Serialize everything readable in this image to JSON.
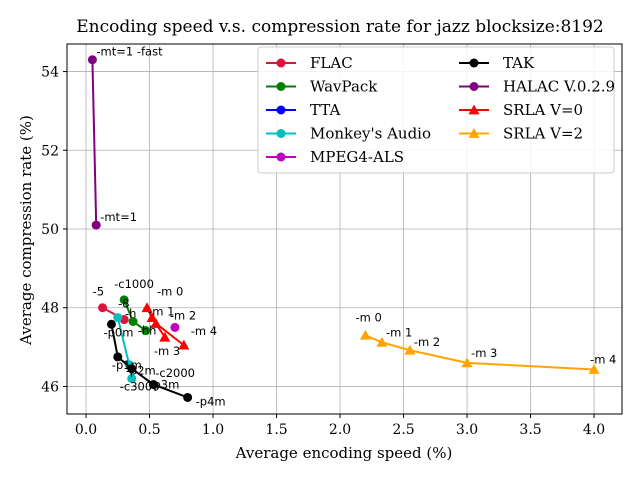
{
  "chart_data": {
    "type": "line",
    "title": "Encoding speed v.s. compression rate for jazz blocksize:8192",
    "xlabel": "Average encoding speed (%)",
    "ylabel": "Average compression rate (%)",
    "xlim": [
      -0.15,
      4.22
    ],
    "ylim": [
      45.3,
      54.7
    ],
    "xticks": [
      0.0,
      0.5,
      1.0,
      1.5,
      2.0,
      2.5,
      3.0,
      3.5,
      4.0
    ],
    "xtick_labels": [
      "0.0",
      "0.5",
      "1.0",
      "1.5",
      "2.0",
      "2.5",
      "3.0",
      "3.5",
      "4.0"
    ],
    "yticks": [
      46,
      48,
      50,
      52,
      54
    ],
    "ytick_labels": [
      "46",
      "48",
      "50",
      "52",
      "54"
    ],
    "grid": true,
    "legend_position": "top-right",
    "series": [
      {
        "name": "FLAC",
        "color": "#dc143c",
        "marker": "circle",
        "points": [
          {
            "x": 0.13,
            "y": 48.0,
            "label": "-5"
          },
          {
            "x": 0.3,
            "y": 47.7,
            "label": "-8"
          }
        ]
      },
      {
        "name": "WavPack",
        "color": "#008000",
        "marker": "circle",
        "points": [
          {
            "x": 0.3,
            "y": 48.2,
            "label": "-c1000"
          },
          {
            "x": 0.37,
            "y": 47.65,
            "label": "-h"
          },
          {
            "x": 0.47,
            "y": 47.42,
            "label": "-hh"
          }
        ]
      },
      {
        "name": "TTA",
        "color": "#0000ff",
        "marker": "circle",
        "points": []
      },
      {
        "name": "Monkey's Audio",
        "color": "#00bfbf",
        "marker": "circle",
        "points": [
          {
            "x": 0.25,
            "y": 47.75,
            "label": ""
          },
          {
            "x": 0.34,
            "y": 46.55,
            "label": "-c2000"
          },
          {
            "x": 0.36,
            "y": 46.2,
            "label": "-c3000"
          }
        ]
      },
      {
        "name": "MPEG4-ALS",
        "color": "#bf00bf",
        "marker": "circle",
        "points": [
          {
            "x": 0.7,
            "y": 47.5,
            "label": ""
          }
        ]
      },
      {
        "name": "TAK",
        "color": "#000000",
        "marker": "circle",
        "points": [
          {
            "x": 0.2,
            "y": 47.58,
            "label": "-p0m"
          },
          {
            "x": 0.25,
            "y": 46.75,
            "label": "-p1m"
          },
          {
            "x": 0.36,
            "y": 46.45,
            "label": "-p2m"
          },
          {
            "x": 0.53,
            "y": 46.05,
            "label": "-p3m"
          },
          {
            "x": 0.8,
            "y": 45.72,
            "label": "-p4m"
          }
        ]
      },
      {
        "name": "HALAC V.0.2.9",
        "color": "#800080",
        "marker": "circle",
        "points": [
          {
            "x": 0.05,
            "y": 54.3,
            "label": "-mt=1 -fast"
          },
          {
            "x": 0.08,
            "y": 50.1,
            "label": "-mt=1"
          }
        ]
      },
      {
        "name": "SRLA V=0",
        "color": "#ff0000",
        "marker": "triangle",
        "points": [
          {
            "x": 0.48,
            "y": 48.0,
            "label": "-m 0"
          },
          {
            "x": 0.52,
            "y": 47.75,
            "label": "-m 1"
          },
          {
            "x": 0.62,
            "y": 47.25,
            "label": "-m 4"
          },
          {
            "x": 0.55,
            "y": 47.6,
            "label": "-m 2"
          },
          {
            "x": 0.77,
            "y": 47.05,
            "label": "-m 3"
          }
        ]
      },
      {
        "name": "SRLA V=2",
        "color": "#ffa500",
        "marker": "triangle",
        "points": [
          {
            "x": 2.2,
            "y": 47.3,
            "label": "-m 0"
          },
          {
            "x": 2.33,
            "y": 47.12,
            "label": "-m 1"
          },
          {
            "x": 2.55,
            "y": 46.92,
            "label": "-m 2"
          },
          {
            "x": 3.0,
            "y": 46.6,
            "label": "-m 3"
          },
          {
            "x": 4.0,
            "y": 46.43,
            "label": "-m 4"
          }
        ]
      }
    ]
  }
}
